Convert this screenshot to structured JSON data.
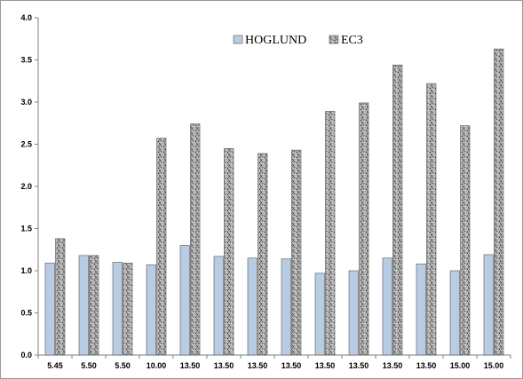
{
  "chart_data": {
    "type": "bar",
    "title": "",
    "xlabel": "",
    "ylabel": "",
    "categories": [
      "5.45",
      "5.50",
      "5.50",
      "10.00",
      "13.50",
      "13.50",
      "13.50",
      "13.50",
      "13.50",
      "13.50",
      "13.50",
      "13.50",
      "15.00",
      "15.00"
    ],
    "series": [
      {
        "name": "HOGLUND",
        "color": "#b8cce4",
        "values": [
          1.09,
          1.18,
          1.1,
          1.07,
          1.3,
          1.17,
          1.15,
          1.14,
          0.97,
          1.0,
          1.15,
          1.08,
          1.0,
          1.19
        ]
      },
      {
        "name": "EC3",
        "color": "#8c8c8c",
        "pattern": "speckled",
        "values": [
          1.38,
          1.18,
          1.09,
          2.57,
          2.74,
          2.45,
          2.39,
          2.43,
          2.89,
          2.99,
          3.44,
          3.22,
          2.72,
          3.63
        ]
      }
    ],
    "ylim": [
      0.0,
      4.0
    ],
    "yticks": [
      "0.0",
      "0.5",
      "1.0",
      "1.5",
      "2.0",
      "2.5",
      "3.0",
      "3.5",
      "4.0"
    ],
    "grid": false,
    "legend_position": "top-center"
  }
}
